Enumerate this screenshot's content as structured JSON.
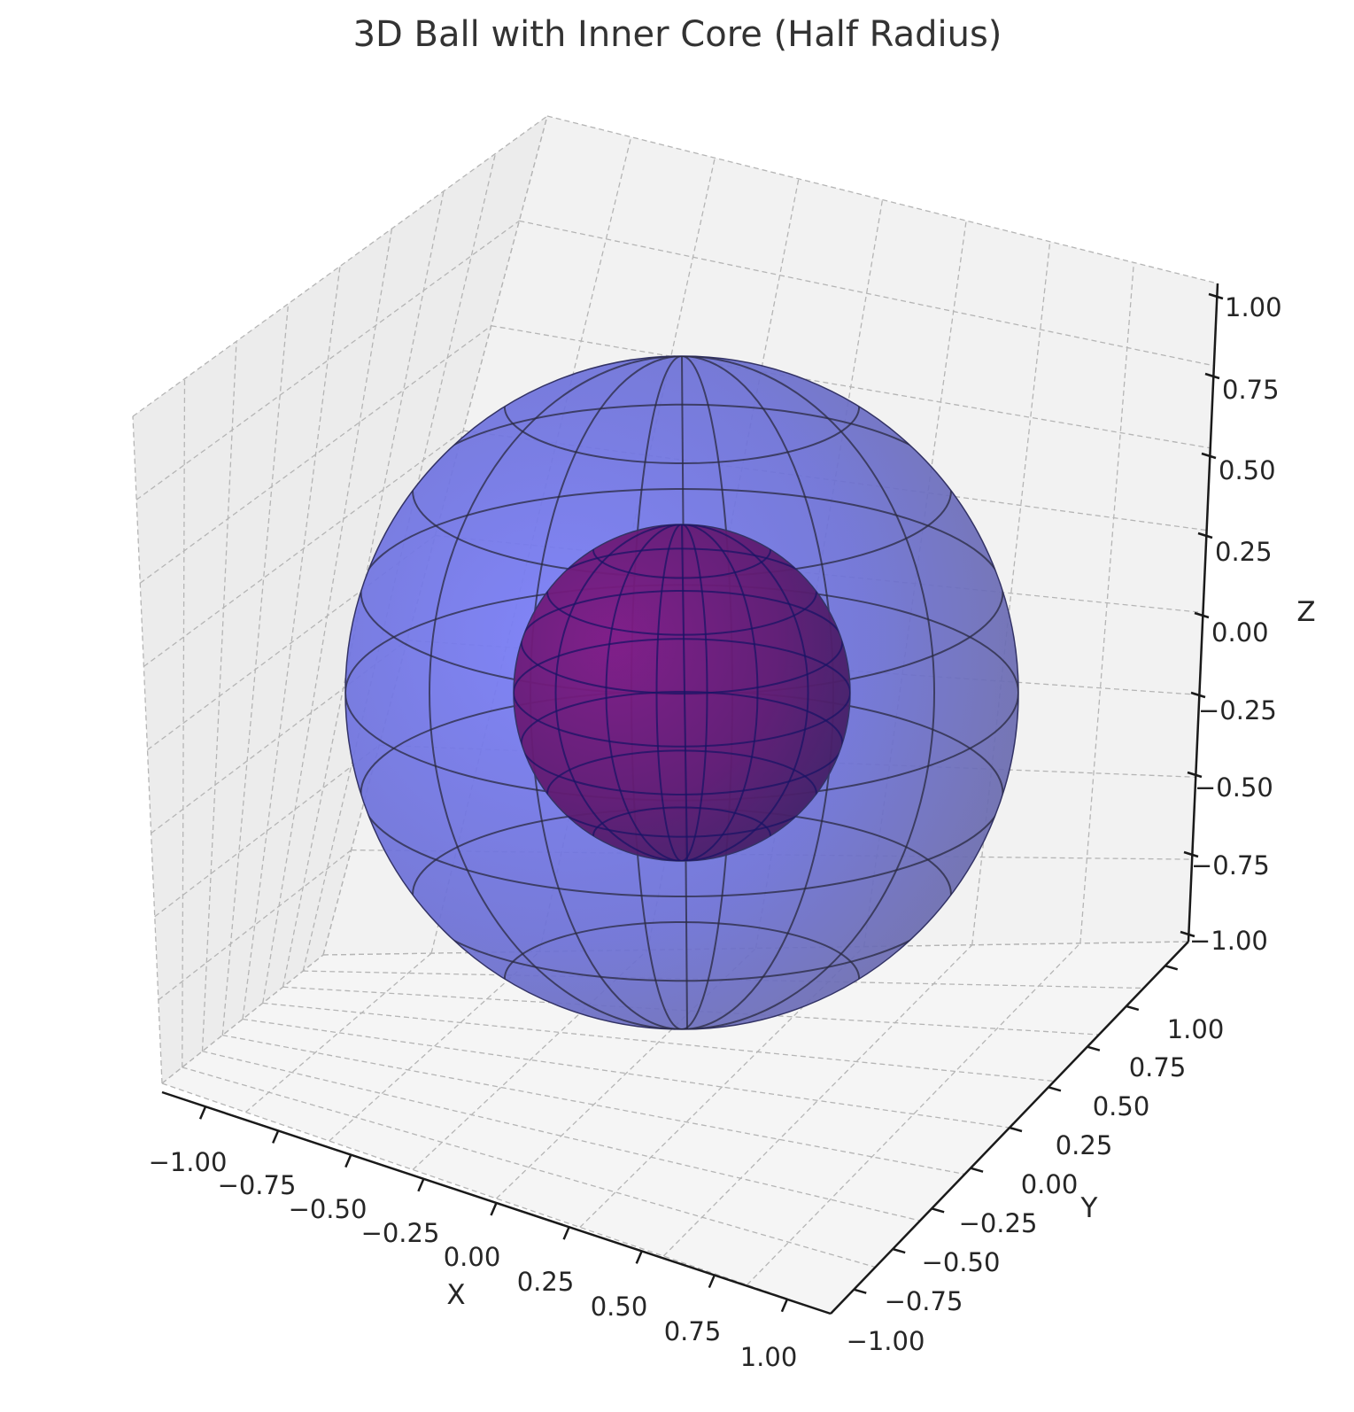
{
  "chart_data": {
    "type": "surface3d",
    "title": "3D Ball with Inner Core (Half Radius)",
    "xlabel": "X",
    "ylabel": "Y",
    "zlabel": "Z",
    "xlim": [
      -1.0,
      1.0
    ],
    "ylim": [
      -1.0,
      1.0
    ],
    "zlim": [
      -1.0,
      1.0
    ],
    "x_ticks": [
      "−1.00",
      "−0.75",
      "−0.50",
      "−0.25",
      "0.00",
      "0.25",
      "0.50",
      "0.75",
      "1.00"
    ],
    "y_ticks": [
      "−1.00",
      "−0.75",
      "−0.50",
      "−0.25",
      "0.00",
      "0.25",
      "0.50",
      "0.75",
      "1.00"
    ],
    "z_ticks": [
      "1.00",
      "0.75",
      "0.50",
      "0.25",
      "0.00",
      "−0.25",
      "−0.50",
      "−0.75",
      "−1.00"
    ],
    "z_tick_values": [
      1.0,
      0.75,
      0.5,
      0.25,
      0.0,
      -0.25,
      -0.5,
      -0.75,
      -1.0
    ],
    "grid": true,
    "series": [
      {
        "kind": "sphere",
        "center": [
          0,
          0,
          0
        ],
        "radius": 1.0,
        "color": "#5a5ef0"
      },
      {
        "kind": "sphere",
        "center": [
          0,
          0,
          0
        ],
        "radius": 0.5,
        "color": "#7a0a6e"
      }
    ]
  }
}
